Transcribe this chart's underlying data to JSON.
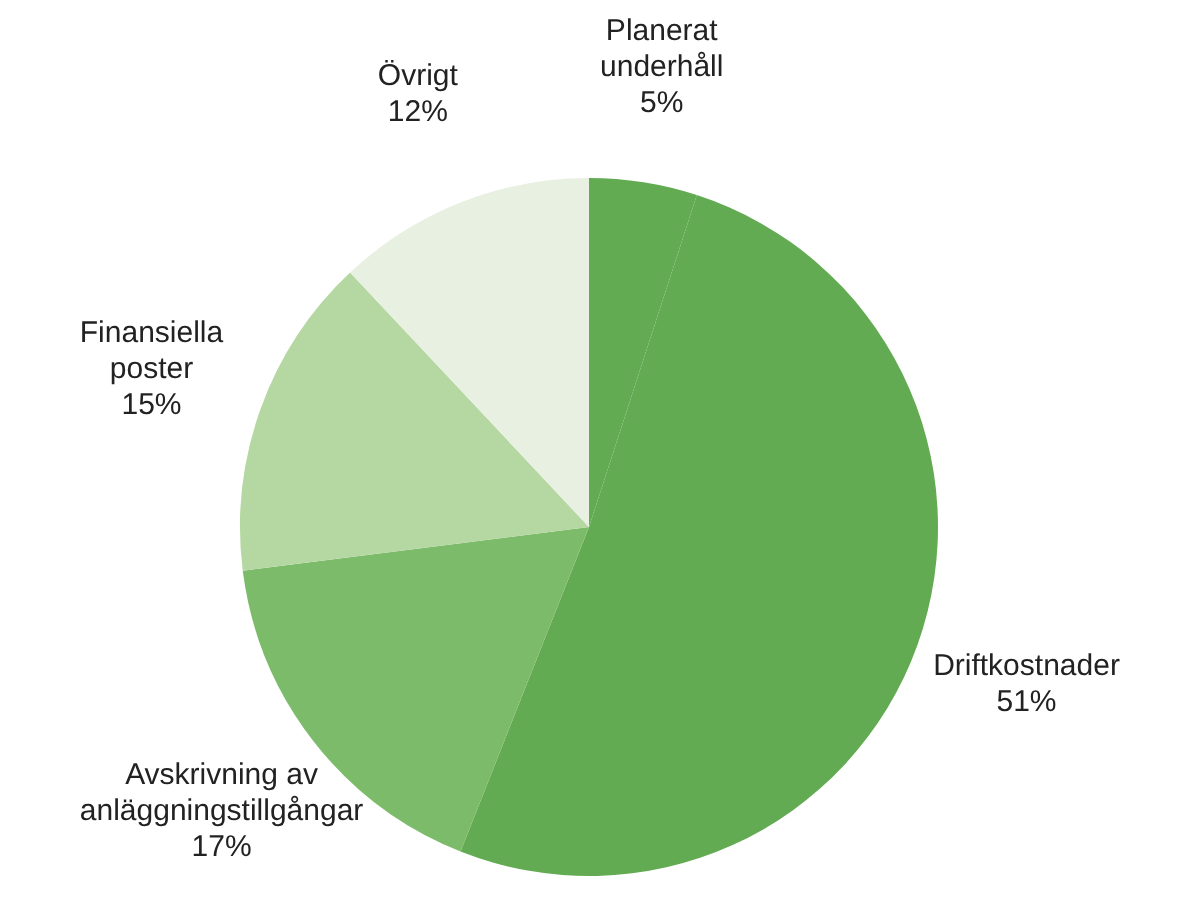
{
  "chart_data": {
    "type": "pie",
    "categories": [
      "Planerat underhåll",
      "Driftkostnader",
      "Avskrivning av anläggningstillgångar",
      "Finansiella poster",
      "Övrigt"
    ],
    "values": [
      5,
      51,
      17,
      15,
      12
    ],
    "value_labels": [
      "5%",
      "51%",
      "17%",
      "15%",
      "12%"
    ],
    "colors": [
      "#62ab52",
      "#62ab52",
      "#7cbb69",
      "#b5d7a1",
      "#e8f1e1"
    ],
    "legend": false
  }
}
